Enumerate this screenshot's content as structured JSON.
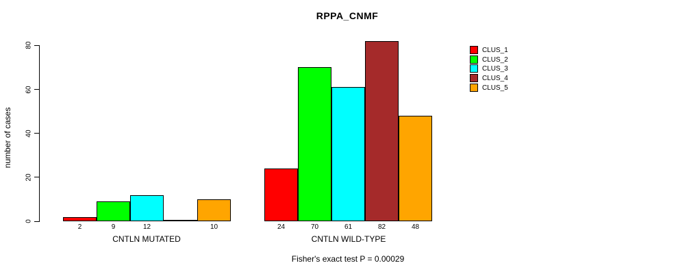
{
  "title": "RPPA_CNMF",
  "annotation": "Fisher's exact test P = 0.00029",
  "chart_data": {
    "type": "bar",
    "title": "RPPA_CNMF",
    "ylabel": "number of cases",
    "xlabel": "",
    "ylim": [
      0,
      80
    ],
    "yticks": [
      0,
      20,
      40,
      60,
      80
    ],
    "grid": false,
    "legend_position": "right-outside",
    "series_names": [
      "CLUS_1",
      "CLUS_2",
      "CLUS_3",
      "CLUS_4",
      "CLUS_5"
    ],
    "series_colors": [
      "#FF0000",
      "#00FF00",
      "#00FFFF",
      "#A52A2A",
      "#FFA500"
    ],
    "groups": [
      {
        "label": "CNTLN MUTATED",
        "values": [
          2,
          9,
          12,
          0,
          10
        ]
      },
      {
        "label": "CNTLN WILD-TYPE",
        "values": [
          24,
          70,
          61,
          82,
          48
        ]
      }
    ],
    "bar_value_labels_visible": true,
    "zero_value_label_hidden": true,
    "annotation": "Fisher's exact test P = 0.00029"
  },
  "legend": {
    "items": [
      {
        "label": "CLUS_1",
        "color": "#FF0000"
      },
      {
        "label": "CLUS_2",
        "color": "#00FF00"
      },
      {
        "label": "CLUS_3",
        "color": "#00FFFF"
      },
      {
        "label": "CLUS_4",
        "color": "#A52A2A"
      },
      {
        "label": "CLUS_5",
        "color": "#FFA500"
      }
    ]
  }
}
